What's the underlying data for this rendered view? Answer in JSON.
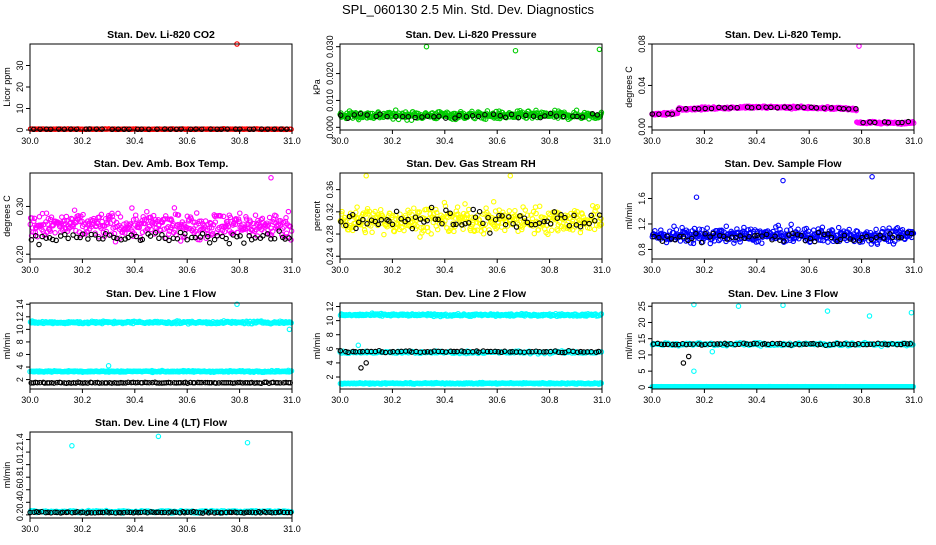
{
  "page_title": "SPL_060130  2.5 Min. Std. Dev. Diagnostics",
  "chart_data": [
    {
      "type": "scatter",
      "title": "Stan. Dev. Li-820 CO2",
      "xlabel": "",
      "ylabel": "Licor ppm",
      "xlim": [
        30.0,
        31.0
      ],
      "ylim": [
        0,
        40
      ],
      "xticks": [
        "30.0",
        "30.2",
        "30.4",
        "30.6",
        "30.8",
        "31.0"
      ],
      "yticks": [
        "0",
        "10",
        "20",
        "30"
      ],
      "yticks_values": [
        0,
        10,
        20,
        30
      ],
      "series": [
        {
          "name": "primary",
          "color": "#ff0000",
          "base": 0.4,
          "spread": 0.2,
          "count": 160,
          "outliers": [
            [
              30.79,
              40
            ]
          ]
        },
        {
          "name": "secondary",
          "color": "#000000",
          "base": 0.4,
          "spread": 0.1,
          "count": 40,
          "outliers": []
        }
      ]
    },
    {
      "type": "scatter",
      "title": "Stan. Dev. Li-820 Pressure",
      "xlabel": "",
      "ylabel": "kPa",
      "xlim": [
        30.0,
        31.0
      ],
      "ylim": [
        -0.001,
        0.031
      ],
      "xticks": [
        "30.0",
        "30.2",
        "30.4",
        "30.6",
        "30.8",
        "31.0"
      ],
      "yticks": [
        "0.000",
        "0.010",
        "0.020",
        "0.030"
      ],
      "yticks_values": [
        0,
        0.01,
        0.02,
        0.03
      ],
      "series": [
        {
          "name": "primary",
          "color": "#00cc00",
          "base": 0.0045,
          "spread": 0.0025,
          "count": 420,
          "outliers": [
            [
              30.33,
              0.03
            ],
            [
              30.67,
              0.0285
            ],
            [
              30.99,
              0.029
            ]
          ]
        },
        {
          "name": "secondary",
          "color": "#000000",
          "base": 0.0042,
          "spread": 0.0015,
          "count": 40,
          "outliers": []
        }
      ]
    },
    {
      "type": "scatter",
      "title": "Stan. Dev. Li-820 Temp.",
      "xlabel": "",
      "ylabel": "degrees C",
      "xlim": [
        30.0,
        31.0
      ],
      "ylim": [
        -0.003,
        0.08
      ],
      "xticks": [
        "30.0",
        "30.2",
        "30.4",
        "30.6",
        "30.8",
        "31.0"
      ],
      "yticks": [
        "0.00",
        "0.04",
        "0.08"
      ],
      "yticks_values": [
        0,
        0.04,
        0.08
      ],
      "series": [
        {
          "name": "primary",
          "color": "#ff00ff",
          "base": 0.016,
          "spread": 0.002,
          "count": 380,
          "outliers": [
            [
              30.79,
              0.078
            ]
          ],
          "shape": "temp"
        },
        {
          "name": "secondary",
          "color": "#000000",
          "base": 0.016,
          "spread": 0.001,
          "count": 40,
          "outliers": [],
          "shape": "temp"
        }
      ]
    },
    {
      "type": "scatter",
      "title": "Stan. Dev. Amb. Box Temp.",
      "xlabel": "",
      "ylabel": "degrees C",
      "xlim": [
        30.0,
        31.0
      ],
      "ylim": [
        0.19,
        0.37
      ],
      "xticks": [
        "30.0",
        "30.2",
        "30.4",
        "30.6",
        "30.8",
        "31.0"
      ],
      "yticks": [
        "0.20",
        "0.30"
      ],
      "yticks_values": [
        0.2,
        0.3
      ],
      "series": [
        {
          "name": "primary",
          "color": "#ff00ff",
          "base": 0.26,
          "spread": 0.045,
          "count": 420,
          "outliers": [
            [
              30.92,
              0.36
            ]
          ]
        },
        {
          "name": "secondary",
          "color": "#000000",
          "base": 0.235,
          "spread": 0.02,
          "count": 70,
          "outliers": []
        }
      ]
    },
    {
      "type": "scatter",
      "title": "Stan. Dev. Gas Stream RH",
      "xlabel": "",
      "ylabel": "percent",
      "xlim": [
        30.0,
        31.0
      ],
      "ylim": [
        0.235,
        0.39
      ],
      "xticks": [
        "30.0",
        "30.2",
        "30.4",
        "30.6",
        "30.8",
        "31.0"
      ],
      "yticks": [
        "0.24",
        "0.28",
        "0.32",
        "0.36"
      ],
      "yticks_values": [
        0.24,
        0.28,
        0.32,
        0.36
      ],
      "series": [
        {
          "name": "primary",
          "color": "#ffff00",
          "base": 0.305,
          "spread": 0.04,
          "count": 420,
          "outliers": [
            [
              30.1,
              0.385
            ],
            [
              30.65,
              0.385
            ]
          ]
        },
        {
          "name": "secondary",
          "color": "#000000",
          "base": 0.305,
          "spread": 0.035,
          "count": 70,
          "outliers": []
        }
      ]
    },
    {
      "type": "scatter",
      "title": "Stan. Dev. Sample Flow",
      "xlabel": "",
      "ylabel": "ml/min",
      "xlim": [
        30.0,
        31.0
      ],
      "ylim": [
        0.65,
        2.0
      ],
      "xticks": [
        "30.0",
        "30.2",
        "30.4",
        "30.6",
        "30.8",
        "31.0"
      ],
      "yticks": [
        "0.8",
        "1.2",
        "1.6"
      ],
      "yticks_values": [
        0.8,
        1.2,
        1.6
      ],
      "series": [
        {
          "name": "primary",
          "color": "#0000ff",
          "base": 1.02,
          "spread": 0.2,
          "count": 420,
          "outliers": [
            [
              30.17,
              1.62
            ],
            [
              30.5,
              1.88
            ],
            [
              30.84,
              1.94
            ]
          ]
        },
        {
          "name": "secondary",
          "color": "#000000",
          "base": 1.0,
          "spread": 0.12,
          "count": 60,
          "outliers": []
        }
      ]
    },
    {
      "type": "scatter",
      "title": "Stan. Dev. Line 1 Flow",
      "xlabel": "",
      "ylabel": "ml/min",
      "xlim": [
        30.0,
        31.0
      ],
      "ylim": [
        0.5,
        14.2
      ],
      "xticks": [
        "30.0",
        "30.2",
        "30.4",
        "30.6",
        "30.8",
        "31.0"
      ],
      "yticks": [
        "2",
        "4",
        "6",
        "8",
        "10",
        "12",
        "14"
      ],
      "yticks_values": [
        2,
        4,
        6,
        8,
        10,
        12,
        14
      ],
      "series": [
        {
          "name": "upper",
          "color": "#00ffff",
          "base": 11.1,
          "spread": 0.35,
          "count": 280,
          "outliers": [
            [
              30.79,
              14.0
            ],
            [
              30.99,
              10.0
            ]
          ]
        },
        {
          "name": "middle",
          "color": "#00ffff",
          "base": 3.3,
          "spread": 0.2,
          "count": 280,
          "outliers": [
            [
              30.3,
              4.2
            ]
          ]
        },
        {
          "name": "lower",
          "color": "#000000",
          "base": 1.5,
          "spread": 0.12,
          "count": 110,
          "outliers": []
        }
      ]
    },
    {
      "type": "scatter",
      "title": "Stan. Dev. Line 2 Flow",
      "xlabel": "",
      "ylabel": "ml/min",
      "xlim": [
        30.0,
        31.0
      ],
      "ylim": [
        0.3,
        12.5
      ],
      "xticks": [
        "30.0",
        "30.2",
        "30.4",
        "30.6",
        "30.8",
        "31.0"
      ],
      "yticks": [
        "2",
        "4",
        "6",
        "8",
        "10",
        "12"
      ],
      "yticks_values": [
        2,
        4,
        6,
        8,
        10,
        12
      ],
      "series": [
        {
          "name": "upper",
          "color": "#00ffff",
          "base": 10.8,
          "spread": 0.3,
          "count": 280,
          "outliers": []
        },
        {
          "name": "middle",
          "color": "#00ffff",
          "base": 5.5,
          "spread": 0.3,
          "count": 200,
          "outliers": [
            [
              30.07,
              6.5
            ]
          ]
        },
        {
          "name": "middle-black",
          "color": "#000000",
          "base": 5.6,
          "spread": 0.25,
          "count": 70,
          "outliers": [
            [
              30.08,
              3.3
            ],
            [
              30.1,
              4.0
            ]
          ]
        },
        {
          "name": "lower",
          "color": "#00ffff",
          "base": 1.1,
          "spread": 0.15,
          "count": 280,
          "outliers": []
        }
      ]
    },
    {
      "type": "scatter",
      "title": "Stan. Dev. Line 3 Flow",
      "xlabel": "",
      "ylabel": "ml/min",
      "xlim": [
        30.0,
        31.0
      ],
      "ylim": [
        -0.5,
        26
      ],
      "xticks": [
        "30.0",
        "30.2",
        "30.4",
        "30.6",
        "30.8",
        "31.0"
      ],
      "yticks": [
        "0",
        "5",
        "10",
        "15",
        "20",
        "25"
      ],
      "yticks_values": [
        0,
        5,
        10,
        15,
        20,
        25
      ],
      "series": [
        {
          "name": "upper",
          "color": "#00ffff",
          "base": 13.3,
          "spread": 0.8,
          "count": 200,
          "outliers": [
            [
              30.16,
              25.5
            ],
            [
              30.33,
              25.0
            ],
            [
              30.5,
              25.3
            ],
            [
              30.67,
              23.5
            ],
            [
              30.83,
              22.0
            ],
            [
              30.99,
              23.0
            ],
            [
              30.16,
              5.0
            ],
            [
              30.23,
              11.0
            ]
          ]
        },
        {
          "name": "upper-black",
          "color": "#000000",
          "base": 13.3,
          "spread": 0.5,
          "count": 70,
          "outliers": [
            [
              30.12,
              7.5
            ],
            [
              30.14,
              9.5
            ]
          ]
        },
        {
          "name": "lower",
          "color": "#00ffff",
          "base": 0.2,
          "spread": 0.05,
          "count": 320,
          "outliers": []
        }
      ]
    },
    {
      "type": "scatter",
      "title": "Stan. Dev. Line 4 (LT) Flow",
      "xlabel": "",
      "ylabel": "ml/min",
      "xlim": [
        30.0,
        31.0
      ],
      "ylim": [
        0.15,
        1.52
      ],
      "xticks": [
        "30.0",
        "30.2",
        "30.4",
        "30.6",
        "30.8",
        "31.0"
      ],
      "yticks": [
        "0.2",
        "0.4",
        "0.6",
        "0.8",
        "1.0",
        "1.2",
        "1.4"
      ],
      "yticks_values": [
        0.2,
        0.4,
        0.6,
        0.8,
        1.0,
        1.2,
        1.4
      ],
      "series": [
        {
          "name": "primary",
          "color": "#00ffff",
          "base": 0.25,
          "spread": 0.03,
          "count": 320,
          "outliers": [
            [
              30.16,
              1.3
            ],
            [
              30.49,
              1.45
            ],
            [
              30.83,
              1.35
            ]
          ]
        },
        {
          "name": "secondary",
          "color": "#000000",
          "base": 0.24,
          "spread": 0.02,
          "count": 90,
          "outliers": []
        }
      ]
    }
  ]
}
